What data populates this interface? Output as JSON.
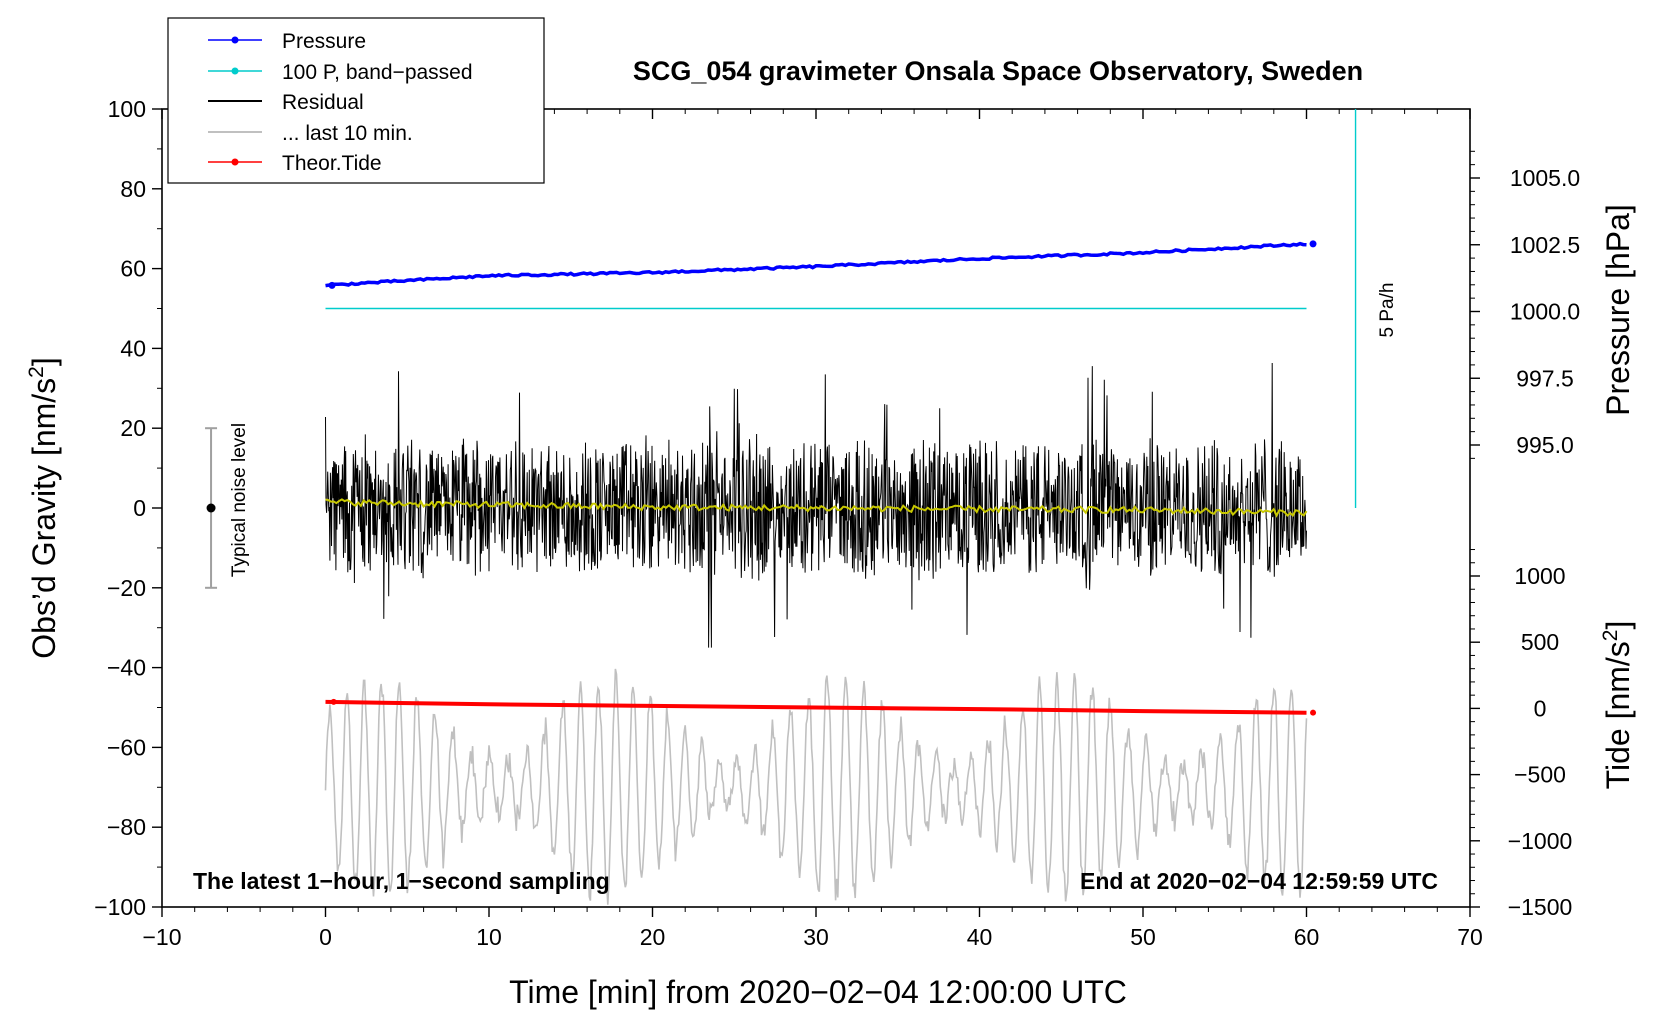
{
  "chart_data": {
    "type": "line",
    "title": "SCG_054 gravimeter Onsala Space Observatory, Sweden",
    "xlabel": "Time [min] from 2020−02−04 12:00:00 UTC",
    "ylabel": "Obs’d Gravity [nm/s",
    "ylabel_sup": "2",
    "ylabel_end": "]",
    "y2label": "Pressure [hPa]",
    "y3label": "Tide [nm/s",
    "y3label_sup": "2",
    "y3label_end": "]",
    "xlim": [
      -10,
      70
    ],
    "ylim": [
      -100,
      100
    ],
    "x_ticks": [
      "−10",
      "0",
      "10",
      "20",
      "30",
      "40",
      "50",
      "60",
      "70"
    ],
    "y_ticks": [
      "−100",
      "−80",
      "−60",
      "−40",
      "−20",
      "0",
      "20",
      "40",
      "60",
      "80",
      "100"
    ],
    "pressure_ticks": [
      "1005.0",
      "1002.5",
      "1000.0",
      "997.5",
      "995.0"
    ],
    "pressure_tick_values": [
      1005.0,
      1002.5,
      1000.0,
      997.5,
      995.0
    ],
    "tide_ticks": [
      "1000",
      "500",
      "0",
      "−500",
      "−1000",
      "−1500"
    ],
    "tide_tick_values": [
      1000,
      500,
      0,
      -500,
      -1000,
      -1500
    ],
    "legend": [
      {
        "label": "Pressure",
        "color": "#0000ff",
        "marker": true
      },
      {
        "label": "100 P, band−passed",
        "color": "#00cccc",
        "marker": true
      },
      {
        "label": "Residual",
        "color": "#000000",
        "marker": false
      },
      {
        "label": "... last 10 min.",
        "color": "#c0c0c0",
        "marker": false
      },
      {
        "label": "Theor.Tide",
        "color": "#ff0000",
        "marker": true
      }
    ],
    "annotations": {
      "bottom_left": "The latest 1−hour, 1−second sampling",
      "bottom_right": "End at 2020−02−04 12:59:59 UTC",
      "noise_label": "Typical noise level",
      "rate_label": "5 Pa/h"
    },
    "noise_bar": {
      "x": -7,
      "center": 0,
      "low": -20,
      "high": 20
    },
    "rate_bar": {
      "x": 63,
      "y_from": 0,
      "y_to": 100
    },
    "series": [
      {
        "name": "Pressure",
        "color": "#0000ff",
        "axis": "left-gravity-units",
        "x": [
          0,
          10,
          20,
          30,
          40,
          50,
          60
        ],
        "values": [
          55.8,
          58.2,
          59.0,
          60.5,
          62.5,
          64.0,
          66.2
        ]
      },
      {
        "name": "100 P, band-passed",
        "color": "#00cccc",
        "axis": "left-gravity-units",
        "x": [
          0,
          60
        ],
        "values": [
          50,
          50
        ]
      },
      {
        "name": "Residual",
        "color": "#000000",
        "axis": "left",
        "x_range": [
          0,
          60
        ],
        "center": 0,
        "amplitude_range": [
          -35,
          45
        ]
      },
      {
        "name": "... last 10 min.",
        "color": "#c0c0c0",
        "axis": "left",
        "x_range": [
          0,
          60
        ],
        "center": -70,
        "amplitude_range": [
          -90,
          -30
        ]
      },
      {
        "name": "Residual smoothed",
        "color": "#c8c800",
        "axis": "left",
        "x": [
          0,
          10,
          20,
          30,
          40,
          50,
          60
        ],
        "values": [
          1.5,
          0.8,
          0.2,
          0.0,
          -0.3,
          -0.5,
          -1.2
        ]
      },
      {
        "name": "Theor.Tide",
        "color": "#ff0000",
        "axis": "left",
        "x": [
          0,
          10,
          20,
          30,
          40,
          50,
          60
        ],
        "values": [
          -48.6,
          -49.2,
          -49.6,
          -50.0,
          -50.4,
          -50.9,
          -51.3
        ]
      }
    ]
  }
}
